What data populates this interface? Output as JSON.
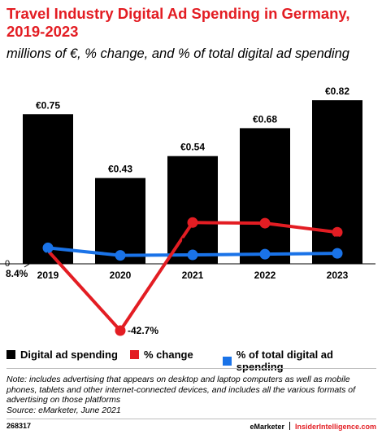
{
  "title": "Travel Industry Digital Ad Spending in Germany, 2019-2023",
  "subtitle": "millions of €, % change, and % of total digital ad spending",
  "chart_data": {
    "type": "bar",
    "categories": [
      "2019",
      "2020",
      "2021",
      "2022",
      "2023"
    ],
    "series": [
      {
        "name": "Digital ad spending",
        "kind": "bar",
        "color": "#000000",
        "values": [
          0.75,
          0.43,
          0.54,
          0.68,
          0.82
        ],
        "labels": [
          "€0.75",
          "€0.43",
          "€0.54",
          "€0.68",
          "€0.82"
        ]
      },
      {
        "name": "% change",
        "kind": "line",
        "color": "#e31d23",
        "values": [
          null,
          -42.7,
          26.4,
          26.0,
          20.2
        ],
        "labels": [
          "",
          "-42.7%",
          "26.4%",
          "26.0%",
          "20.2%"
        ]
      },
      {
        "name": "% of total digital ad spending",
        "kind": "line",
        "color": "#1a73e8",
        "values": [
          10.2,
          5.4,
          5.7,
          6.2,
          6.7
        ],
        "labels": [
          "10.2%",
          "5.4%",
          "5.7%",
          "6.2%",
          "6.7%"
        ]
      }
    ],
    "lead_in": {
      "value": 8.4,
      "label": "8.4%"
    },
    "zero_label": "0",
    "legend_position": "bottom"
  },
  "note": "Note: includes advertising that appears on desktop and laptop computers as well as mobile phones, tablets and other internet-connected devices, and includes all the various formats of advertising on those platforms",
  "source": "Source: eMarketer, June 2021",
  "footer": {
    "chart_id": "268317",
    "brand": "eMarketer",
    "brand2": "InsiderIntelligence.com"
  }
}
